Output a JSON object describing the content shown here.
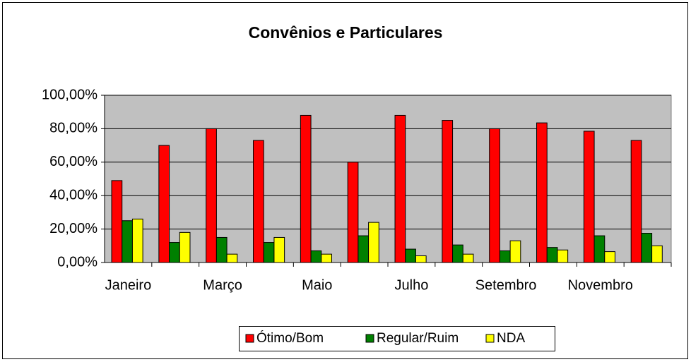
{
  "chart_data": {
    "type": "bar",
    "title": "Convênios e Particulares",
    "categories": [
      "Janeiro",
      null,
      "Março",
      null,
      "Maio",
      null,
      "Julho",
      null,
      "Setembro",
      null,
      "Novembro",
      null
    ],
    "series": [
      {
        "name": "Ótimo/Bom",
        "color": "#ff0000",
        "values": [
          49,
          70,
          80,
          73,
          88,
          60,
          88,
          85,
          80,
          83.5,
          78.5,
          73
        ]
      },
      {
        "name": "Regular/Ruim",
        "color": "#008000",
        "values": [
          25,
          12,
          15,
          12,
          7,
          16,
          8,
          10.5,
          7,
          9,
          16,
          17.5
        ]
      },
      {
        "name": "NDA",
        "color": "#ffff00",
        "values": [
          26,
          18,
          5,
          15,
          5,
          24,
          4,
          5,
          13,
          7.5,
          6.5,
          10
        ]
      }
    ],
    "ylim": [
      0,
      100
    ],
    "yticks": [
      {
        "value": 0,
        "label": "0,00%"
      },
      {
        "value": 20,
        "label": "20,00%"
      },
      {
        "value": 40,
        "label": "40,00%"
      },
      {
        "value": 60,
        "label": "60,00%"
      },
      {
        "value": 80,
        "label": "80,00%"
      },
      {
        "value": 100,
        "label": "100,00%"
      }
    ],
    "grid": true,
    "legend": "bottom",
    "plot_background": "#c0c0c0"
  }
}
